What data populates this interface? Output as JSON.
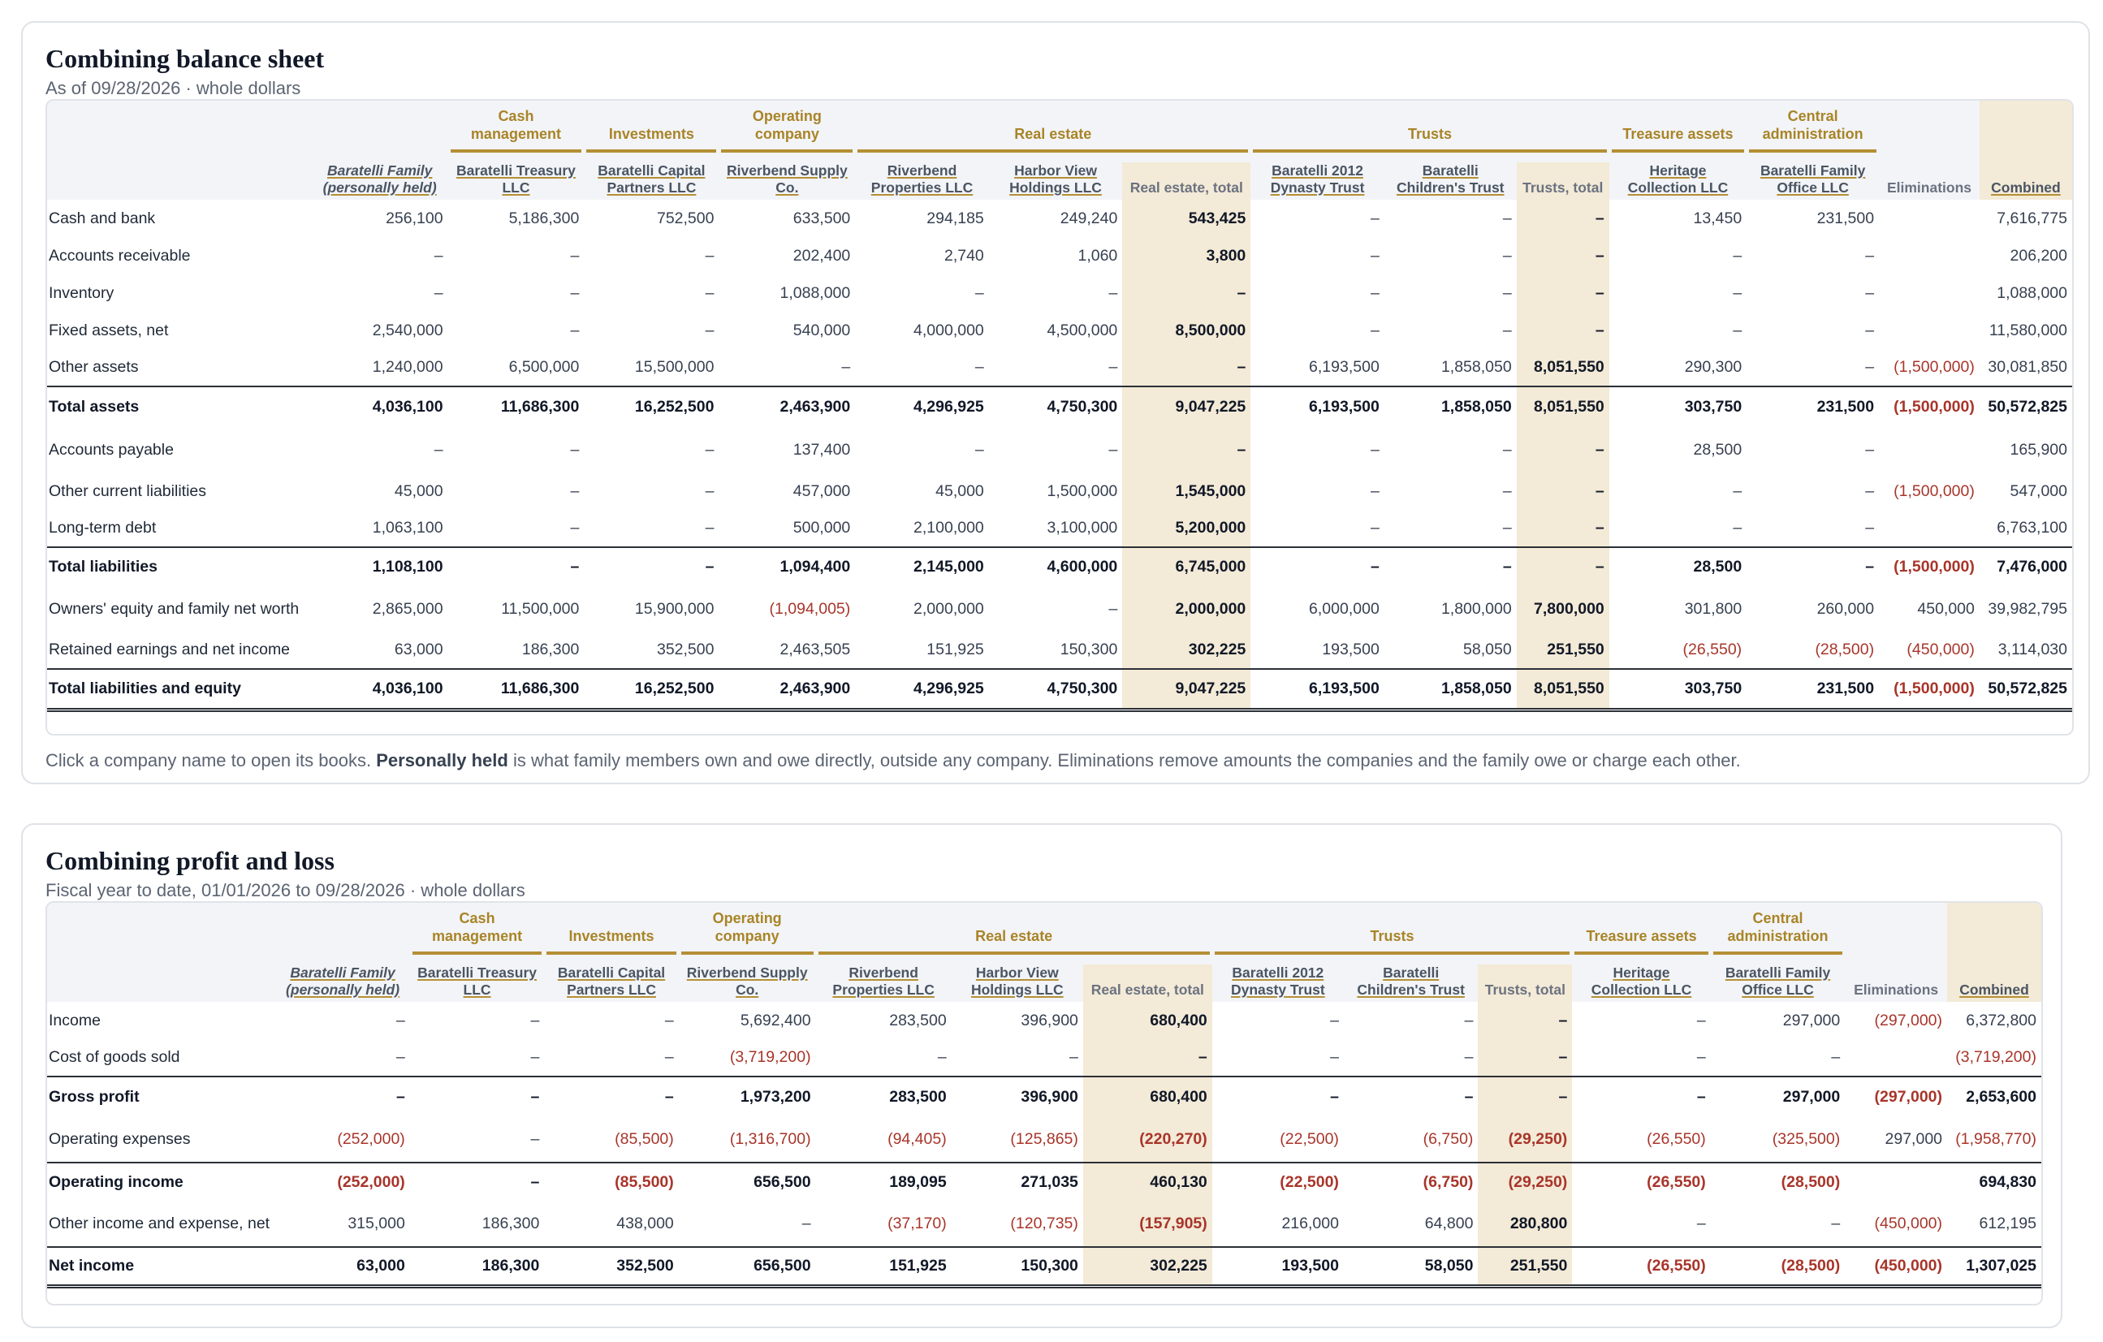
{
  "balance_sheet": {
    "title": "Combining balance sheet",
    "subtitle": "As of 09/28/2026 · whole dollars",
    "groups": [
      "Cash management",
      "Investments",
      "Operating company",
      "Real estate",
      "Trusts",
      "Treasure assets",
      "Central administration"
    ],
    "entities": [
      "Baratelli Family (personally held)",
      "Baratelli Treasury LLC",
      "Baratelli Capital Partners LLC",
      "Riverbend Supply Co.",
      "Riverbend Properties LLC",
      "Harbor View Holdings LLC",
      "Real estate, total",
      "Baratelli 2012 Dynasty Trust",
      "Baratelli Children's Trust",
      "Trusts, total",
      "Heritage Collection LLC",
      "Baratelli Family Office LLC",
      "Eliminations",
      "Combined"
    ],
    "rows": [
      {
        "label": "Cash and bank",
        "values": [
          "256,100",
          "5,186,300",
          "752,500",
          "633,500",
          "294,185",
          "249,240",
          "543,425",
          "–",
          "–",
          "–",
          "13,450",
          "231,500",
          "",
          "7,616,775"
        ]
      },
      {
        "label": "Accounts receivable",
        "values": [
          "–",
          "–",
          "–",
          "202,400",
          "2,740",
          "1,060",
          "3,800",
          "–",
          "–",
          "–",
          "–",
          "–",
          "",
          "206,200"
        ]
      },
      {
        "label": "Inventory",
        "values": [
          "–",
          "–",
          "–",
          "1,088,000",
          "–",
          "–",
          "–",
          "–",
          "–",
          "–",
          "–",
          "–",
          "",
          "1,088,000"
        ]
      },
      {
        "label": "Fixed assets, net",
        "values": [
          "2,540,000",
          "–",
          "–",
          "540,000",
          "4,000,000",
          "4,500,000",
          "8,500,000",
          "–",
          "–",
          "–",
          "–",
          "–",
          "",
          "11,580,000"
        ]
      },
      {
        "label": "Other assets",
        "values": [
          "1,240,000",
          "6,500,000",
          "15,500,000",
          "–",
          "–",
          "–",
          "–",
          "6,193,500",
          "1,858,050",
          "8,051,550",
          "290,300",
          "–",
          "(1,500,000)",
          "30,081,850"
        ]
      },
      {
        "label": "Total assets",
        "values": [
          "4,036,100",
          "11,686,300",
          "16,252,500",
          "2,463,900",
          "4,296,925",
          "4,750,300",
          "9,047,225",
          "6,193,500",
          "1,858,050",
          "8,051,550",
          "303,750",
          "231,500",
          "(1,500,000)",
          "50,572,825"
        ]
      },
      {
        "label": "Accounts payable",
        "values": [
          "–",
          "–",
          "–",
          "137,400",
          "–",
          "–",
          "–",
          "–",
          "–",
          "–",
          "28,500",
          "–",
          "",
          "165,900"
        ]
      },
      {
        "label": "Other current liabilities",
        "values": [
          "45,000",
          "–",
          "–",
          "457,000",
          "45,000",
          "1,500,000",
          "1,545,000",
          "–",
          "–",
          "–",
          "–",
          "–",
          "(1,500,000)",
          "547,000"
        ]
      },
      {
        "label": "Long-term debt",
        "values": [
          "1,063,100",
          "–",
          "–",
          "500,000",
          "2,100,000",
          "3,100,000",
          "5,200,000",
          "–",
          "–",
          "–",
          "–",
          "–",
          "",
          "6,763,100"
        ]
      },
      {
        "label": "Total liabilities",
        "values": [
          "1,108,100",
          "–",
          "–",
          "1,094,400",
          "2,145,000",
          "4,600,000",
          "6,745,000",
          "–",
          "–",
          "–",
          "28,500",
          "–",
          "(1,500,000)",
          "7,476,000"
        ]
      },
      {
        "label": "Owners' equity and family net worth",
        "values": [
          "2,865,000",
          "11,500,000",
          "15,900,000",
          "(1,094,005)",
          "2,000,000",
          "–",
          "2,000,000",
          "6,000,000",
          "1,800,000",
          "7,800,000",
          "301,800",
          "260,000",
          "450,000",
          "39,982,795"
        ]
      },
      {
        "label": "Retained earnings and net income",
        "values": [
          "63,000",
          "186,300",
          "352,500",
          "2,463,505",
          "151,925",
          "150,300",
          "302,225",
          "193,500",
          "58,050",
          "251,550",
          "(26,550)",
          "(28,500)",
          "(450,000)",
          "3,114,030"
        ]
      },
      {
        "label": "Total liabilities and equity",
        "values": [
          "4,036,100",
          "11,686,300",
          "16,252,500",
          "2,463,900",
          "4,296,925",
          "4,750,300",
          "9,047,225",
          "6,193,500",
          "1,858,050",
          "8,051,550",
          "303,750",
          "231,500",
          "(1,500,000)",
          "50,572,825"
        ]
      }
    ],
    "footnote_pre": "Click a company name to open its books. ",
    "footnote_bold": "Personally held",
    "footnote_post": " is what family members own and owe directly, outside any company. Eliminations remove amounts the companies and the family owe or charge each other."
  },
  "profit_loss": {
    "title": "Combining profit and loss",
    "subtitle": "Fiscal year to date, 01/01/2026 to 09/28/2026 · whole dollars",
    "rows": [
      {
        "label": "Income",
        "values": [
          "–",
          "–",
          "–",
          "5,692,400",
          "283,500",
          "396,900",
          "680,400",
          "–",
          "–",
          "–",
          "–",
          "297,000",
          "(297,000)",
          "6,372,800"
        ]
      },
      {
        "label": "Cost of goods sold",
        "values": [
          "–",
          "–",
          "–",
          "(3,719,200)",
          "–",
          "–",
          "–",
          "–",
          "–",
          "–",
          "–",
          "–",
          "",
          "(3,719,200)"
        ]
      },
      {
        "label": "Gross profit",
        "values": [
          "–",
          "–",
          "–",
          "1,973,200",
          "283,500",
          "396,900",
          "680,400",
          "–",
          "–",
          "–",
          "–",
          "297,000",
          "(297,000)",
          "2,653,600"
        ]
      },
      {
        "label": "Operating expenses",
        "values": [
          "(252,000)",
          "–",
          "(85,500)",
          "(1,316,700)",
          "(94,405)",
          "(125,865)",
          "(220,270)",
          "(22,500)",
          "(6,750)",
          "(29,250)",
          "(26,550)",
          "(325,500)",
          "297,000",
          "(1,958,770)"
        ]
      },
      {
        "label": "Operating income",
        "values": [
          "(252,000)",
          "–",
          "(85,500)",
          "656,500",
          "189,095",
          "271,035",
          "460,130",
          "(22,500)",
          "(6,750)",
          "(29,250)",
          "(26,550)",
          "(28,500)",
          "",
          "694,830"
        ]
      },
      {
        "label": "Other income and expense, net",
        "values": [
          "315,000",
          "186,300",
          "438,000",
          "–",
          "(37,170)",
          "(120,735)",
          "(157,905)",
          "216,000",
          "64,800",
          "280,800",
          "–",
          "–",
          "(450,000)",
          "612,195"
        ]
      },
      {
        "label": "Net income",
        "values": [
          "63,000",
          "186,300",
          "352,500",
          "656,500",
          "151,925",
          "150,300",
          "302,225",
          "193,500",
          "58,050",
          "251,550",
          "(26,550)",
          "(28,500)",
          "(450,000)",
          "1,307,025"
        ]
      }
    ]
  },
  "colors": {
    "accent_gold": "#b48f35",
    "group_text": "#a98427",
    "highlight_bg": "#f3ead7",
    "negative": "#a8352a",
    "header_bg": "#f2f4f7"
  }
}
